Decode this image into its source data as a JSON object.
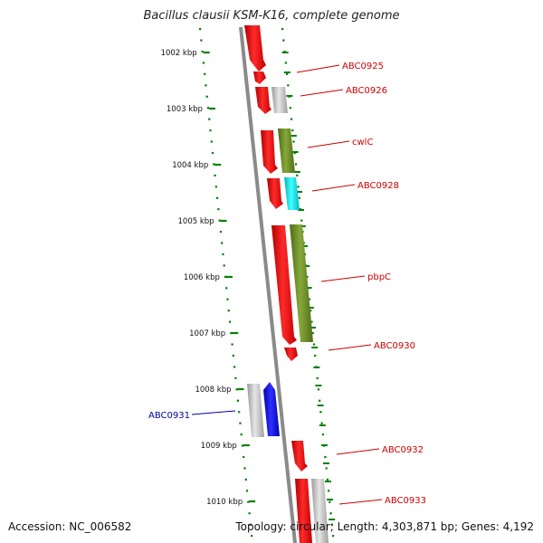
{
  "title": "Bacillus clausii KSM-K16, complete genome",
  "footer": {
    "accession": "Accession: NC_006582",
    "summary": "Topology: circular; Length: 4,303,871 bp; Genes: 4,192"
  },
  "ticks": [
    {
      "label": "1002 kbp"
    },
    {
      "label": "1003 kbp"
    },
    {
      "label": "1004 kbp"
    },
    {
      "label": "1005 kbp"
    },
    {
      "label": "1006 kbp"
    },
    {
      "label": "1007 kbp"
    },
    {
      "label": "1008 kbp"
    },
    {
      "label": "1009 kbp"
    },
    {
      "label": "1010 kbp"
    }
  ],
  "gene_labels": [
    {
      "text": "ABC0925",
      "color": "#cc0000"
    },
    {
      "text": "ABC0926",
      "color": "#cc0000"
    },
    {
      "text": "cwlC",
      "color": "#cc0000"
    },
    {
      "text": "ABC0928",
      "color": "#cc0000"
    },
    {
      "text": "pbpC",
      "color": "#cc0000"
    },
    {
      "text": "ABC0930",
      "color": "#cc0000"
    },
    {
      "text": "ABC0931",
      "color": "#0000aa"
    },
    {
      "text": "ABC0932",
      "color": "#cc0000"
    },
    {
      "text": "ABC0933",
      "color": "#cc0000"
    }
  ],
  "colors": {
    "cds": "#ff0000",
    "orf": "#6b8e23",
    "grey": "#c0c0c0",
    "cyan": "#00e5ee",
    "blue": "#0000ff",
    "backbone": "#808080",
    "dots": "#008000"
  }
}
